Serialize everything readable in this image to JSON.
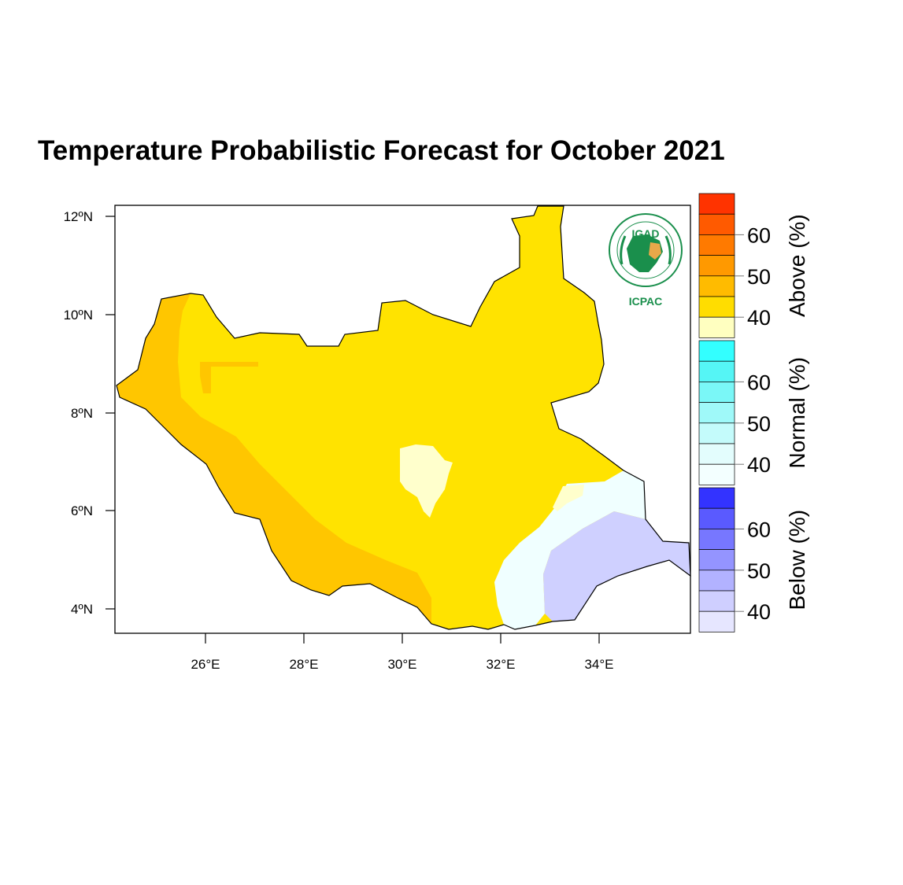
{
  "title": "Temperature Probabilistic Forecast for October 2021",
  "axes": {
    "lat_ticks": [
      "12ºN",
      "10ºN",
      "8ºN",
      "6ºN",
      "4ºN"
    ],
    "lon_ticks": [
      "26°E",
      "28°E",
      "30°E",
      "32°E",
      "34°E"
    ]
  },
  "logo": {
    "name": "IGAD",
    "org": "ICPAC",
    "ring_text": "INTERGOVERNMENTAL AUTHORITY ON DEVELOPMENT"
  },
  "colorbar": {
    "groups": [
      {
        "label": "Above (%)",
        "tick_labels": [
          "60",
          "50",
          "40"
        ],
        "colors": [
          "#ff3300",
          "#ff5a00",
          "#ff7a00",
          "#ff9900",
          "#ffbb00",
          "#ffdd00",
          "#ffffc0"
        ]
      },
      {
        "label": "Normal (%)",
        "tick_labels": [
          "60",
          "50",
          "40"
        ],
        "colors": [
          "#33ffff",
          "#55f5f5",
          "#7af7f7",
          "#9ff9f9",
          "#c4fbfb",
          "#e3fdfd",
          "#f3ffff"
        ]
      },
      {
        "label": "Below (%)",
        "tick_labels": [
          "60",
          "50",
          "40"
        ],
        "colors": [
          "#3333ff",
          "#5a5aff",
          "#7777ff",
          "#9494ff",
          "#b2b2ff",
          "#cfcfff",
          "#e6e6ff"
        ]
      }
    ]
  },
  "map_colors": {
    "above_45": "#ffc600",
    "above_40": "#ffe300",
    "above_low": "#ffffcc",
    "normal_low": "#f0ffff",
    "below_40": "#cfd0ff",
    "border": "#000000"
  }
}
